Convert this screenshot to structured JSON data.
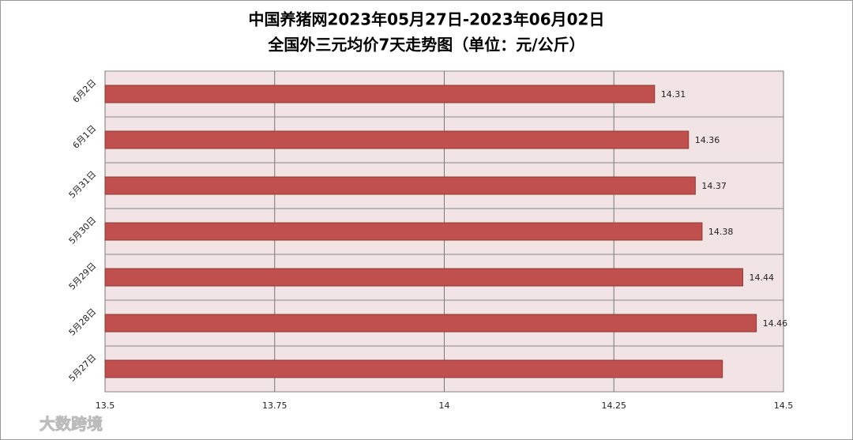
{
  "chart_data": {
    "type": "barh",
    "title": "中国养猪网2023年05月27日-2023年06月02日",
    "subtitle": "全国外三元均价7天走势图（单位：元/公斤）",
    "categories": [
      "6月2日",
      "6月1日",
      "5月31日",
      "5月30日",
      "5月29日",
      "5月28日",
      "5月27日"
    ],
    "values": [
      14.31,
      14.36,
      14.37,
      14.38,
      14.44,
      14.46,
      14.41
    ],
    "value_labels": [
      "14.31",
      "14.36",
      "14.37",
      "14.38",
      "14.44",
      "14.46",
      null
    ],
    "color": "#c0504d",
    "xlim": [
      13.5,
      14.5
    ],
    "xticks": [
      13.5,
      13.75,
      14,
      14.25,
      14.5
    ],
    "grid": true,
    "watermark": "大数跨境"
  }
}
